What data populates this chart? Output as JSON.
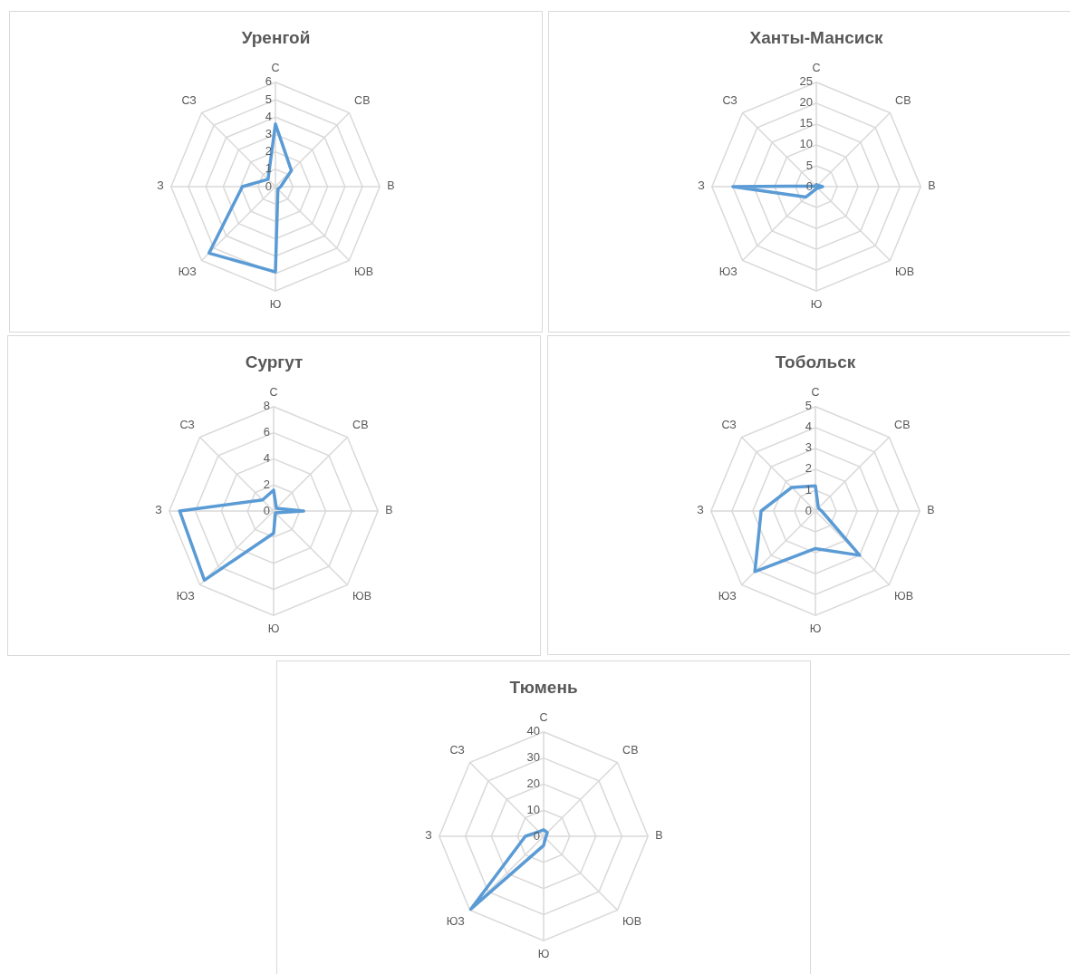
{
  "chart_data": [
    {
      "type": "radar",
      "title": "Уренгой",
      "categories": [
        "С",
        "СВ",
        "В",
        "ЮВ",
        "Ю",
        "ЮЗ",
        "З",
        "СЗ"
      ],
      "series": [
        {
          "color": "#5b9bd5",
          "values": [
            3.6,
            1.3,
            0.3,
            0.2,
            4.9,
            5.4,
            1.9,
            0.6
          ]
        }
      ],
      "ylim": [
        0,
        6
      ],
      "yticks": [
        0,
        1,
        2,
        3,
        4,
        5,
        6
      ],
      "grid": true
    },
    {
      "type": "radar",
      "title": "Ханты-Мансиск",
      "categories": [
        "С",
        "СВ",
        "В",
        "ЮВ",
        "Ю",
        "ЮЗ",
        "З",
        "СЗ"
      ],
      "series": [
        {
          "color": "#5b9bd5",
          "values": [
            0.5,
            0.5,
            1.5,
            0.5,
            0.5,
            3.5,
            20,
            0.2
          ]
        }
      ],
      "ylim": [
        0,
        25
      ],
      "yticks": [
        0,
        5,
        10,
        15,
        20,
        25
      ],
      "grid": true
    },
    {
      "type": "radar",
      "title": "Сургут",
      "categories": [
        "С",
        "СВ",
        "В",
        "ЮВ",
        "Ю",
        "ЮЗ",
        "З",
        "СЗ"
      ],
      "series": [
        {
          "color": "#5b9bd5",
          "values": [
            1.6,
            0.3,
            2.3,
            0.2,
            1.7,
            7.5,
            7.2,
            1.2
          ]
        }
      ],
      "ylim": [
        0,
        8
      ],
      "yticks": [
        0,
        2,
        4,
        6,
        8
      ],
      "grid": true
    },
    {
      "type": "radar",
      "title": "Тобольск",
      "categories": [
        "С",
        "СВ",
        "В",
        "ЮВ",
        "Ю",
        "ЮЗ",
        "З",
        "СЗ"
      ],
      "series": [
        {
          "color": "#5b9bd5",
          "values": [
            1.2,
            0.2,
            0.3,
            3.0,
            1.8,
            4.1,
            2.6,
            1.6
          ]
        }
      ],
      "ylim": [
        0,
        5
      ],
      "yticks": [
        0,
        1,
        2,
        3,
        4,
        5
      ],
      "grid": true
    },
    {
      "type": "radar",
      "title": "Тюмень",
      "categories": [
        "С",
        "СВ",
        "В",
        "ЮВ",
        "Ю",
        "ЮЗ",
        "З",
        "СЗ"
      ],
      "series": [
        {
          "color": "#5b9bd5",
          "values": [
            2.5,
            2,
            1,
            1,
            3.5,
            39.5,
            7,
            2.5
          ]
        }
      ],
      "ylim": [
        0,
        40
      ],
      "yticks": [
        0,
        10,
        20,
        30,
        40
      ],
      "grid": true
    }
  ]
}
